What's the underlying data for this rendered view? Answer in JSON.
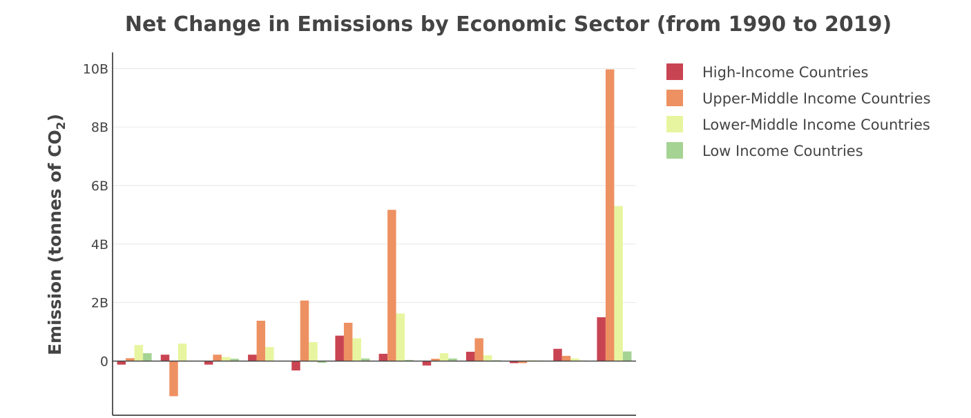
{
  "chart_data": {
    "type": "bar",
    "title": "Net Change in Emissions by Economic Sector (from 1990 to 2019)",
    "ylabel": "Emission (tonnes of CO",
    "ylabel_subscript": "2",
    "ylabel_suffix": ")",
    "ylim": [
      -1.85,
      10.55
    ],
    "yticks": [
      {
        "value": 0,
        "label": "0"
      },
      {
        "value": 2,
        "label": "2B"
      },
      {
        "value": 4,
        "label": "4B"
      },
      {
        "value": 6,
        "label": "6B"
      },
      {
        "value": 8,
        "label": "8B"
      },
      {
        "value": 10,
        "label": "10B"
      }
    ],
    "grid": true,
    "legend_position": "top-right",
    "categories_count": 12,
    "series": [
      {
        "name": "High-Income Countries",
        "color": "#c94452",
        "values": [
          -0.12,
          0.22,
          -0.12,
          0.22,
          -0.32,
          0.87,
          0.25,
          -0.15,
          0.32,
          -0.07,
          0.42,
          1.5
        ]
      },
      {
        "name": "Upper-Middle Income Countries",
        "color": "#ee9162",
        "values": [
          0.1,
          -1.2,
          0.22,
          1.38,
          2.07,
          1.31,
          5.17,
          0.08,
          0.78,
          -0.07,
          0.18,
          9.97
        ]
      },
      {
        "name": "Lower-Middle Income Countries",
        "color": "#e8f5a0",
        "values": [
          0.55,
          0.6,
          0.14,
          0.48,
          0.65,
          0.78,
          1.63,
          0.27,
          0.2,
          0.03,
          0.09,
          5.3
        ]
      },
      {
        "name": "Low Income Countries",
        "color": "#a5d394",
        "values": [
          0.27,
          0.01,
          0.08,
          0.01,
          -0.06,
          0.09,
          0.04,
          0.09,
          0.03,
          0.02,
          0.02,
          0.33
        ]
      }
    ]
  }
}
